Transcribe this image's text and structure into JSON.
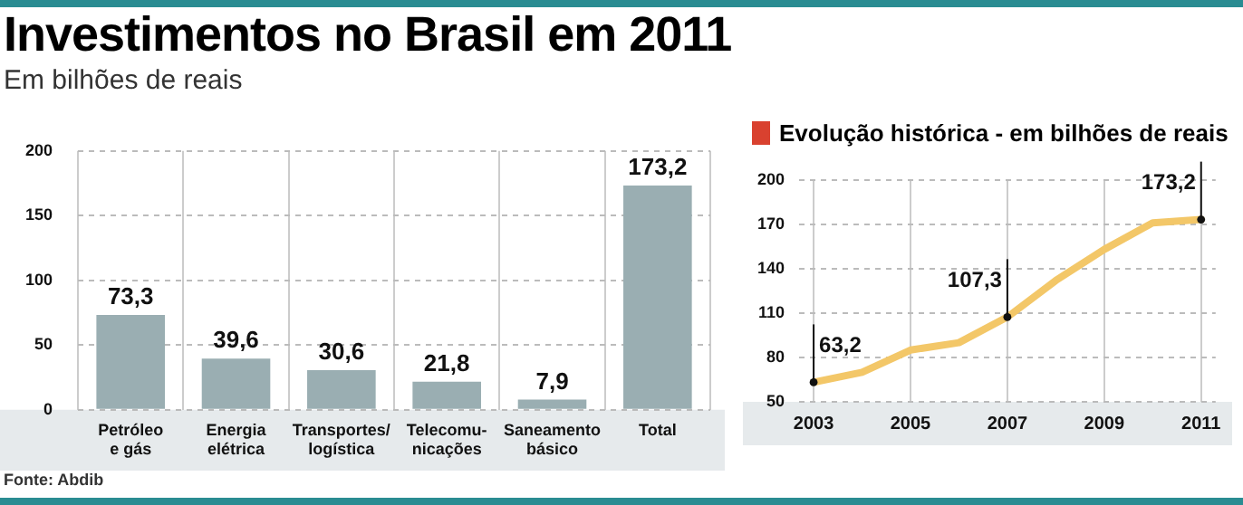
{
  "chart_data": [
    {
      "type": "bar",
      "title": "Investimentos no Brasil em 2011",
      "subtitle": "Em bilhões de reais",
      "categories": [
        "Petróleo\ne gás",
        "Energia\nelétrica",
        "Transportes/\nlogística",
        "Telecomu-\nnicações",
        "Saneamento\nbásico",
        "Total"
      ],
      "values": [
        73.3,
        39.6,
        30.6,
        21.8,
        7.9,
        173.2
      ],
      "color": "#9aaeb2",
      "ylim": [
        0,
        200
      ],
      "yticks": [
        0,
        50,
        100,
        150,
        200
      ],
      "grid": true,
      "value_labels": [
        "73,3",
        "39,6",
        "30,6",
        "21,8",
        "7,9",
        "173,2"
      ],
      "annotations": [
        "Fonte: Abdib"
      ]
    },
    {
      "type": "line",
      "title": "Evolução histórica - em bilhões de reais",
      "x": [
        2003,
        2004,
        2005,
        2006,
        2007,
        2008,
        2009,
        2010,
        2011
      ],
      "series": [
        {
          "color": "#f3c768",
          "values": [
            63.2,
            70,
            85,
            90,
            107.3,
            132,
            153,
            171,
            173.2
          ],
          "value_labels": [
            "63,2",
            null,
            null,
            null,
            "107,3",
            null,
            null,
            null,
            "173,2"
          ]
        }
      ],
      "xlim": [
        2002.7,
        2011.3
      ],
      "xticks": [
        2003,
        2005,
        2007,
        2009,
        2011
      ],
      "ylim": [
        50,
        200
      ],
      "yticks": [
        50,
        80,
        110,
        140,
        170,
        200
      ],
      "grid": true
    }
  ]
}
